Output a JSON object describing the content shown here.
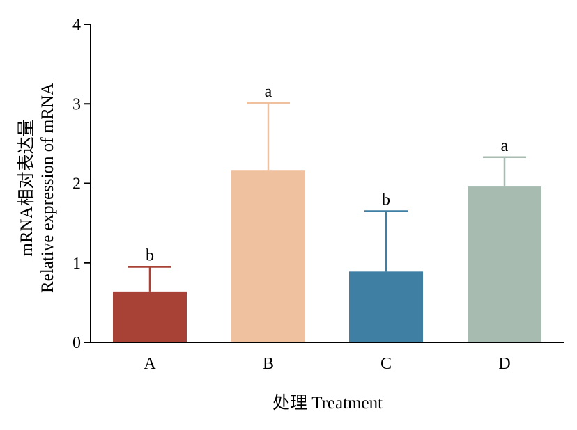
{
  "chart_data": {
    "type": "bar",
    "categories": [
      "A",
      "B",
      "C",
      "D"
    ],
    "values": [
      0.64,
      2.16,
      0.89,
      1.96
    ],
    "error_upper": [
      0.95,
      3.01,
      1.65,
      2.33
    ],
    "significance": [
      "b",
      "a",
      "b",
      "a"
    ],
    "colors": [
      "#A84237",
      "#EFC19F",
      "#3F7FA4",
      "#A7BBB0"
    ],
    "title": "",
    "xlabel": "处理 Treatment",
    "ylabel_lines": [
      "mRNA相对表达量",
      "Relative expression of mRNA"
    ],
    "ylim": [
      0,
      4
    ],
    "yticks": [
      "0",
      "1",
      "2",
      "3",
      "4"
    ],
    "grid": false,
    "legend": "none"
  }
}
